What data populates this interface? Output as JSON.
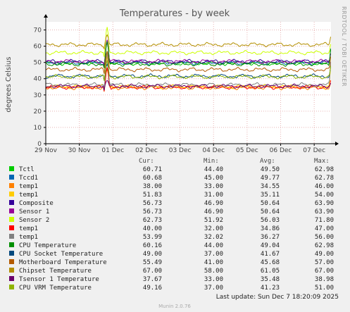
{
  "page": {
    "title": "Temperatures - by week",
    "ylabel": "degrees Celsius",
    "side_text": "RRDTOOL / TOBI OETIKER",
    "last_update": "Last update:  Sun Dec  7 18:20:09 2025",
    "footer": "Munin 2.0.76"
  },
  "legend_headers": {
    "cur": "Cur:",
    "min": "Min:",
    "avg": "Avg:",
    "max": "Max:"
  },
  "legend": [
    {
      "label": "Tctl",
      "color": "#00cc00",
      "cur": "60.71",
      "min": "44.40",
      "avg": "49.50",
      "max": "62.98"
    },
    {
      "label": "Tccd1",
      "color": "#0066b3",
      "cur": "60.68",
      "min": "45.00",
      "avg": "49.77",
      "max": "62.78"
    },
    {
      "label": "temp1",
      "color": "#ff8000",
      "cur": "38.00",
      "min": "33.00",
      "avg": "34.55",
      "max": "46.00"
    },
    {
      "label": "temp1",
      "color": "#ffcc00",
      "cur": "51.83",
      "min": "31.00",
      "avg": "35.11",
      "max": "54.00"
    },
    {
      "label": "Composite",
      "color": "#330099",
      "cur": "56.73",
      "min": "46.90",
      "avg": "50.64",
      "max": "63.90"
    },
    {
      "label": "Sensor 1",
      "color": "#990099",
      "cur": "56.73",
      "min": "46.90",
      "avg": "50.64",
      "max": "63.90"
    },
    {
      "label": "Sensor 2",
      "color": "#ccff00",
      "cur": "62.73",
      "min": "51.92",
      "avg": "56.03",
      "max": "71.80"
    },
    {
      "label": "temp1",
      "color": "#ff0000",
      "cur": "40.00",
      "min": "32.00",
      "avg": "34.86",
      "max": "47.00"
    },
    {
      "label": "temp1",
      "color": "#808080",
      "cur": "53.99",
      "min": "32.02",
      "avg": "36.27",
      "max": "56.00"
    },
    {
      "label": "CPU Temperature",
      "color": "#008f00",
      "cur": "60.16",
      "min": "44.00",
      "avg": "49.04",
      "max": "62.98"
    },
    {
      "label": "CPU Socket Temperature",
      "color": "#00487d",
      "cur": "49.00",
      "min": "37.00",
      "avg": "41.67",
      "max": "49.00"
    },
    {
      "label": "Motherboard Temperature",
      "color": "#b35a00",
      "cur": "55.49",
      "min": "41.00",
      "avg": "45.68",
      "max": "57.00"
    },
    {
      "label": "Chipset Temperature",
      "color": "#b38f00",
      "cur": "67.00",
      "min": "58.00",
      "avg": "61.05",
      "max": "67.00"
    },
    {
      "label": "Tsensor 1 Temperature",
      "color": "#6b006b",
      "cur": "37.67",
      "min": "33.00",
      "avg": "35.48",
      "max": "38.98"
    },
    {
      "label": "CPU VRM Temperature",
      "color": "#8fb300",
      "cur": "49.16",
      "min": "37.00",
      "avg": "41.23",
      "max": "51.00"
    }
  ],
  "chart_data": {
    "type": "line",
    "title": "Temperatures - by week",
    "ylabel": "degrees Celsius",
    "xlabel": "",
    "ylim": [
      0,
      75
    ],
    "yticks": [
      "0",
      "10",
      "20",
      "30",
      "40",
      "50",
      "60",
      "70"
    ],
    "xticks": [
      "29 Nov",
      "30 Nov",
      "01 Dec",
      "02 Dec",
      "03 Dec",
      "04 Dec",
      "05 Dec",
      "06 Dec",
      "07 Dec"
    ],
    "x_range_days": [
      0,
      8.5
    ],
    "grid": true,
    "series": [
      {
        "name": "Tctl",
        "base": 49.5,
        "end": 60.7,
        "spike": 62.9
      },
      {
        "name": "Tccd1",
        "base": 49.7,
        "end": 60.7,
        "spike": 62.8
      },
      {
        "name": "temp1",
        "base": 34.5,
        "end": 38.0,
        "spike": 46.0
      },
      {
        "name": "temp1",
        "base": 35.1,
        "end": 51.8,
        "spike": 54.0
      },
      {
        "name": "Composite",
        "base": 50.6,
        "end": 56.7,
        "spike": 63.9
      },
      {
        "name": "Sensor 1",
        "base": 50.6,
        "end": 56.7,
        "spike": 63.9
      },
      {
        "name": "Sensor 2",
        "base": 56.0,
        "end": 62.7,
        "spike": 71.8
      },
      {
        "name": "temp1",
        "base": 34.8,
        "end": 40.0,
        "spike": 47.0
      },
      {
        "name": "temp1",
        "base": 36.2,
        "end": 54.0,
        "spike": 56.0
      },
      {
        "name": "CPU Temperature",
        "base": 49.0,
        "end": 60.2,
        "spike": 62.9
      },
      {
        "name": "CPU Socket Temperature",
        "base": 41.6,
        "end": 49.0,
        "spike": 49.0
      },
      {
        "name": "Motherboard Temperature",
        "base": 45.6,
        "end": 55.5,
        "spike": 57.0
      },
      {
        "name": "Chipset Temperature",
        "base": 61.0,
        "end": 67.0,
        "spike": 67.0
      },
      {
        "name": "Tsensor 1 Temperature",
        "base": 35.4,
        "end": 37.7,
        "spike": 39.0
      },
      {
        "name": "CPU VRM Temperature",
        "base": 41.2,
        "end": 49.2,
        "spike": 51.0
      }
    ]
  }
}
